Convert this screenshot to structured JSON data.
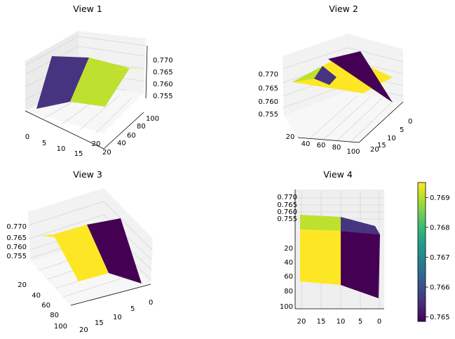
{
  "chart_data": [
    {
      "type": "surface",
      "title": "View 1",
      "x_ticks": [
        "0",
        "5",
        "10",
        "15",
        "20"
      ],
      "y_ticks": [
        "20",
        "40",
        "60",
        "80",
        "100"
      ],
      "z_ticks": [
        "0.755",
        "0.760",
        "0.765",
        "0.770"
      ],
      "x_range": [
        0,
        20
      ],
      "y_range": [
        10,
        100
      ],
      "z_range": [
        0.754,
        0.772
      ],
      "surface_x": [
        0,
        10,
        20
      ],
      "surface_y": [
        10,
        100
      ],
      "surface_z": [
        [
          0.765,
          0.7695,
          0.765
        ],
        [
          0.765,
          0.7695,
          0.765
        ]
      ],
      "colormap": "viridis",
      "panel_colors": [
        "#463480",
        "#bde12e"
      ]
    },
    {
      "type": "surface",
      "title": "View 2",
      "x_ticks": [
        "0",
        "5",
        "10",
        "15",
        "20"
      ],
      "y_ticks": [
        "20",
        "40",
        "60",
        "80",
        "100"
      ],
      "z_ticks": [
        "0.755",
        "0.760",
        "0.765",
        "0.770"
      ],
      "surface_x": [
        0,
        10,
        20
      ],
      "surface_y": [
        10,
        100
      ],
      "surface_z": [
        [
          0.765,
          0.7695,
          0.765
        ],
        [
          0.765,
          0.7695,
          0.765
        ]
      ],
      "panel_colors": [
        "#440154",
        "#fde725",
        "#463480",
        "#bde12e"
      ]
    },
    {
      "type": "surface",
      "title": "View 3",
      "x_ticks": [
        "0",
        "5",
        "10",
        "15",
        "20"
      ],
      "y_ticks": [
        "20",
        "40",
        "60",
        "80",
        "100"
      ],
      "z_ticks": [
        "0.755",
        "0.760",
        "0.765",
        "0.770"
      ],
      "surface_x": [
        0,
        10,
        20
      ],
      "surface_y": [
        10,
        100
      ],
      "surface_z": [
        [
          0.765,
          0.7695,
          0.765
        ],
        [
          0.765,
          0.7695,
          0.765
        ]
      ],
      "panel_colors": [
        "#440154",
        "#fde725"
      ]
    },
    {
      "type": "surface",
      "title": "View 4",
      "x_ticks": [
        "20",
        "15",
        "10",
        "5",
        "0"
      ],
      "y_ticks": [
        "20",
        "40",
        "60",
        "80",
        "100"
      ],
      "z_ticks": [
        "0.770",
        "0.765",
        "0.760",
        "0.755"
      ],
      "surface_x": [
        0,
        10,
        20
      ],
      "surface_y": [
        10,
        100
      ],
      "surface_z": [
        [
          0.765,
          0.7695,
          0.765
        ],
        [
          0.765,
          0.7695,
          0.765
        ]
      ],
      "panel_colors": [
        "#fde725",
        "#440154",
        "#bde12e",
        "#463480"
      ]
    }
  ],
  "colorbar": {
    "range": [
      0.76485,
      0.7695
    ],
    "ticks": [
      "0.769",
      "0.768",
      "0.767",
      "0.766",
      "0.765"
    ],
    "tick_values": [
      0.769,
      0.768,
      0.767,
      0.766,
      0.765
    ],
    "colormap_stops": [
      "#440154",
      "#482878",
      "#3e4989",
      "#31688e",
      "#26828e",
      "#1f9e89",
      "#35b779",
      "#6ece58",
      "#b5de2b",
      "#fde725"
    ]
  }
}
